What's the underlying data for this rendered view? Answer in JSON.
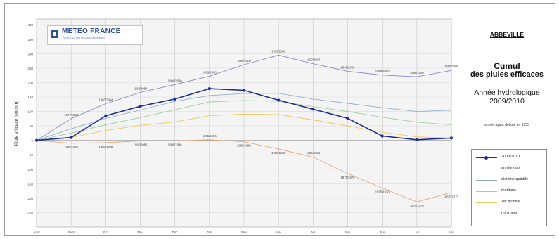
{
  "header": {
    "logo_name": "METEO FRANCE",
    "logo_tagline": "Toujours un temps d'avance",
    "station": "ABBEVILLE",
    "title_line1": "Cumul",
    "title_line2": "des pluies efficaces",
    "year_line1": "Année hydrologique",
    "year_line2": "2009/2010",
    "note": "année ayant débuté en 1953"
  },
  "chart_data": {
    "type": "line",
    "ylabel": "Pluie efficace (en mm)",
    "ylim": [
      -300,
      420
    ],
    "yticks": [
      -250,
      -200,
      -150,
      -100,
      -50,
      0,
      50,
      100,
      150,
      200,
      250,
      300,
      350,
      400
    ],
    "categories": [
      "Août",
      "Sept",
      "Oct",
      "Nov",
      "Déc",
      "Jan",
      "Fév",
      "Mar",
      "Avr",
      "Mai",
      "Jun",
      "Jul",
      "Aoû"
    ],
    "grid": true,
    "legend_position": "bottom-right",
    "series": [
      {
        "name": "2009/2010",
        "color": "#1f2f8f",
        "width": 1.6,
        "markers": true,
        "values": [
          0,
          10,
          85,
          118,
          143,
          179,
          173,
          139,
          108,
          76,
          15,
          2,
          8
        ]
      },
      {
        "name": "année max",
        "color": "#8888c8",
        "width": 0.9,
        "markers": false,
        "values": [
          0,
          75,
          127,
          166,
          193,
          222,
          262,
          295,
          265,
          239,
          226,
          220,
          242
        ]
      },
      {
        "name": "dixième quintile",
        "color": "#92b0c8",
        "width": 0.9,
        "markers": false,
        "values": [
          0,
          40,
          76,
          105,
          135,
          155,
          162,
          163,
          143,
          128,
          113,
          100,
          104
        ]
      },
      {
        "name": "médiane",
        "color": "#9cd0a0",
        "width": 0.9,
        "markers": false,
        "values": [
          0,
          25,
          54,
          79,
          106,
          133,
          138,
          135,
          117,
          100,
          80,
          63,
          54
        ]
      },
      {
        "name": "1er quintile",
        "color": "#f0c85a",
        "width": 0.9,
        "markers": false,
        "values": [
          0,
          10,
          34,
          52,
          64,
          85,
          91,
          89,
          71,
          50,
          28,
          12,
          8
        ]
      },
      {
        "name": "minimum",
        "color": "#e8a878",
        "width": 0.9,
        "markers": false,
        "values": [
          0,
          -10,
          -8,
          -2,
          -2,
          2,
          -5,
          -30,
          -58,
          -115,
          -165,
          -213,
          -180
        ]
      }
    ],
    "annotations": [
      {
        "text": "1997/1998",
        "x": 1,
        "y": 75
      },
      {
        "text": "1983/1984",
        "x": 2,
        "y": 127
      },
      {
        "text": "1983/1984",
        "x": 3,
        "y": 166
      },
      {
        "text": "1999/2000",
        "x": 4,
        "y": 193
      },
      {
        "text": "1999/2000",
        "x": 5,
        "y": 222
      },
      {
        "text": "1999/2000",
        "x": 6,
        "y": 262
      },
      {
        "text": "1999/2000",
        "x": 7,
        "y": 295
      },
      {
        "text": "1999/2000",
        "x": 8,
        "y": 265
      },
      {
        "text": "1999/2000",
        "x": 9,
        "y": 239
      },
      {
        "text": "1999/2000",
        "x": 10,
        "y": 226
      },
      {
        "text": "1999/2000",
        "x": 11,
        "y": 220
      },
      {
        "text": "1999/2000",
        "x": 12,
        "y": 242
      },
      {
        "text": "1985/1986",
        "x": 1,
        "y": -10
      },
      {
        "text": "1985/1986",
        "x": 2,
        "y": -8
      },
      {
        "text": "1985/1986",
        "x": 3,
        "y": -2
      },
      {
        "text": "1985/1986",
        "x": 4,
        "y": -2
      },
      {
        "text": "1985/1986",
        "x": 5,
        "y": 2
      },
      {
        "text": "1985/1986",
        "x": 6,
        "y": -5
      },
      {
        "text": "1985/1986",
        "x": 7,
        "y": -30
      },
      {
        "text": "1985/1986",
        "x": 8,
        "y": -30
      },
      {
        "text": "1975/1976",
        "x": 9,
        "y": -115
      },
      {
        "text": "1975/1976",
        "x": 10,
        "y": -165
      },
      {
        "text": "1975/1976",
        "x": 11,
        "y": -213
      },
      {
        "text": "1975/1976",
        "x": 12,
        "y": -180
      }
    ]
  }
}
